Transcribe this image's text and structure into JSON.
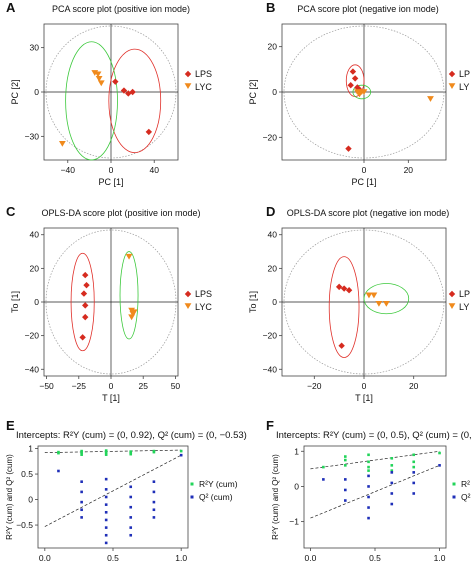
{
  "chart_data": [
    {
      "panel": "A",
      "type": "scatter",
      "title": "PCA score plot (positive ion mode)",
      "xlabel": "PC [1]",
      "ylabel": "PC [2]",
      "xlim": [
        -62,
        62
      ],
      "ylim": [
        -46,
        46
      ],
      "xticks": [
        -40,
        0,
        40
      ],
      "xticklabels": [
        "−40",
        "0",
        "40"
      ],
      "yticks": [
        -30,
        0,
        30
      ],
      "yticklabels": [
        "−30",
        "0",
        "30"
      ],
      "legend_labels": [
        "LPS",
        "LYC"
      ],
      "series": [
        {
          "name": "LPS",
          "points": [
            [
              4,
              7
            ],
            [
              12,
              1
            ],
            [
              16,
              -1
            ],
            [
              20,
              0
            ],
            [
              35,
              -27
            ]
          ]
        },
        {
          "name": "LYC",
          "points": [
            [
              -15,
              13
            ],
            [
              -12,
              12
            ],
            [
              -11,
              9
            ],
            [
              -9,
              6
            ],
            [
              -45,
              -35
            ]
          ]
        }
      ],
      "ellipses": [
        {
          "series": "LPS",
          "cx": 22,
          "cy": -6,
          "rx": 24,
          "ry": 35
        },
        {
          "series": "LYC",
          "cx": -18,
          "cy": -6,
          "rx": 24,
          "ry": 40
        }
      ]
    },
    {
      "panel": "B",
      "type": "scatter",
      "title": "PCA score plot (negative ion mode)",
      "xlabel": "PC [1]",
      "ylabel": "PC [2]",
      "xlim": [
        -37,
        37
      ],
      "ylim": [
        -30,
        30
      ],
      "xticks": [
        0,
        20
      ],
      "xticklabels": [
        "0",
        "20"
      ],
      "yticks": [
        -20,
        0,
        20
      ],
      "yticklabels": [
        "−20",
        "0",
        "20"
      ],
      "legend_labels": [
        "LP",
        "LY"
      ],
      "series": [
        {
          "name": "LPS",
          "points": [
            [
              -5,
              9
            ],
            [
              -4,
              6
            ],
            [
              -6,
              3
            ],
            [
              -3,
              2
            ],
            [
              -2,
              1
            ],
            [
              -7,
              -25
            ]
          ]
        },
        {
          "name": "LYC",
          "points": [
            [
              -3,
              0
            ],
            [
              -2,
              -1
            ],
            [
              -1,
              0
            ],
            [
              0,
              0
            ],
            [
              30,
              -3
            ]
          ]
        }
      ],
      "ellipses": [
        {
          "series": "LPS",
          "cx": -4,
          "cy": 5,
          "rx": 4,
          "ry": 7
        },
        {
          "series": "LYC",
          "cx": -1,
          "cy": 0,
          "rx": 4,
          "ry": 3
        }
      ]
    },
    {
      "panel": "C",
      "type": "scatter",
      "title": "OPLS-DA score plot (positive ion mode)",
      "xlabel": "T [1]",
      "ylabel": "To [1]",
      "xlim": [
        -52,
        52
      ],
      "ylim": [
        -44,
        44
      ],
      "xticks": [
        -50,
        -25,
        0,
        25,
        50
      ],
      "xticklabels": [
        "−50",
        "−25",
        "0",
        "25",
        "50"
      ],
      "yticks": [
        -40,
        -20,
        0,
        20,
        40
      ],
      "yticklabels": [
        "−40",
        "−20",
        "0",
        "20",
        "40"
      ],
      "legend_labels": [
        "LPS",
        "LYC"
      ],
      "series": [
        {
          "name": "LPS",
          "points": [
            [
              -20,
              16
            ],
            [
              -19,
              10
            ],
            [
              -21,
              5
            ],
            [
              -20,
              -2
            ],
            [
              -20,
              -9
            ],
            [
              -22,
              -21
            ]
          ]
        },
        {
          "name": "LYC",
          "points": [
            [
              14,
              27
            ],
            [
              16,
              -5
            ],
            [
              17,
              -7
            ],
            [
              16,
              -9
            ],
            [
              18,
              -6
            ]
          ]
        }
      ],
      "ellipses": [
        {
          "series": "LPS",
          "cx": -22,
          "cy": 0,
          "rx": 9,
          "ry": 29
        },
        {
          "series": "LYC",
          "cx": 14,
          "cy": 4,
          "rx": 7,
          "ry": 26
        }
      ]
    },
    {
      "panel": "D",
      "type": "scatter",
      "title": "OPLS-DA score plot (negative ion mode)",
      "xlabel": "T [1]",
      "ylabel": "To [1]",
      "xlim": [
        -33,
        33
      ],
      "ylim": [
        -44,
        44
      ],
      "xticks": [
        -20,
        0,
        20
      ],
      "xticklabels": [
        "−20",
        "0",
        "20"
      ],
      "yticks": [
        -40,
        -20,
        0,
        20,
        40
      ],
      "yticklabels": [
        "−40",
        "−20",
        "0",
        "20",
        "40"
      ],
      "legend_labels": [
        "LP",
        "LY"
      ],
      "series": [
        {
          "name": "LPS",
          "points": [
            [
              -10,
              9
            ],
            [
              -8,
              8
            ],
            [
              -6,
              7
            ],
            [
              -9,
              -26
            ]
          ]
        },
        {
          "name": "LYC",
          "points": [
            [
              2,
              4
            ],
            [
              4,
              4
            ],
            [
              6,
              -1
            ],
            [
              9,
              -1
            ]
          ]
        }
      ],
      "ellipses": [
        {
          "series": "LPS",
          "cx": -8,
          "cy": -3,
          "rx": 6,
          "ry": 30
        },
        {
          "series": "LYC",
          "cx": 9,
          "cy": 2,
          "rx": 9,
          "ry": 9
        }
      ]
    },
    {
      "panel": "E",
      "type": "scatter",
      "title": "Intercepts: R²Y (cum) = (0, 0.92), Q² (cum) = (0, −0.53)",
      "xlabel": "",
      "ylabel": "R²Y (cum) and Q² (cum)",
      "ylabel_visible": "R²Y (cum) and Q² (cum)",
      "xlim": [
        -0.05,
        1.05
      ],
      "ylim": [
        -0.95,
        1.05
      ],
      "xticks": [
        0,
        0.5,
        1.0
      ],
      "xticklabels": [
        "0.0",
        "0.5",
        "1.0"
      ],
      "yticks": [
        -0.5,
        0,
        0.5,
        1
      ],
      "yticklabels": [
        "−0.5",
        "0",
        "0.5",
        "1"
      ],
      "legend_labels": [
        "R²Y (cum)",
        "Q² (cum)"
      ],
      "series": [
        {
          "name": "R²Y (cum)",
          "points": [
            [
              0.1,
              0.93
            ],
            [
              0.1,
              0.91
            ],
            [
              0.27,
              0.95
            ],
            [
              0.27,
              0.92
            ],
            [
              0.27,
              0.88
            ],
            [
              0.45,
              0.96
            ],
            [
              0.45,
              0.94
            ],
            [
              0.45,
              0.91
            ],
            [
              0.45,
              0.88
            ],
            [
              0.63,
              0.94
            ],
            [
              0.63,
              0.92
            ],
            [
              0.63,
              0.89
            ],
            [
              0.8,
              0.95
            ],
            [
              0.8,
              0.93
            ],
            [
              1.0,
              0.95
            ]
          ]
        },
        {
          "name": "Q² (cum)",
          "points": [
            [
              0.1,
              0.56
            ],
            [
              0.27,
              0.35
            ],
            [
              0.27,
              0.15
            ],
            [
              0.27,
              -0.05
            ],
            [
              0.27,
              -0.2
            ],
            [
              0.27,
              -0.35
            ],
            [
              0.45,
              0.4
            ],
            [
              0.45,
              0.2
            ],
            [
              0.45,
              0.05
            ],
            [
              0.45,
              -0.1
            ],
            [
              0.45,
              -0.25
            ],
            [
              0.45,
              -0.4
            ],
            [
              0.45,
              -0.55
            ],
            [
              0.45,
              -0.7
            ],
            [
              0.45,
              -0.85
            ],
            [
              0.63,
              0.25
            ],
            [
              0.63,
              0.05
            ],
            [
              0.63,
              -0.15
            ],
            [
              0.63,
              -0.35
            ],
            [
              0.63,
              -0.55
            ],
            [
              0.63,
              -0.7
            ],
            [
              0.8,
              0.35
            ],
            [
              0.8,
              0.15
            ],
            [
              0.8,
              -0.05
            ],
            [
              0.8,
              -0.2
            ],
            [
              0.8,
              -0.35
            ],
            [
              1.0,
              0.87
            ]
          ]
        }
      ],
      "regression_lines": [
        {
          "series": "R²Y (cum)",
          "from": [
            0,
            0.92
          ],
          "to": [
            1.0,
            0.97
          ]
        },
        {
          "series": "Q² (cum)",
          "from": [
            0,
            -0.53
          ],
          "to": [
            1.0,
            0.87
          ]
        }
      ]
    },
    {
      "panel": "F",
      "type": "scatter",
      "title": "Intercepts: R²Y (cum) = (0, 0.5), Q² (cum) = (0, −0.",
      "xlabel": "",
      "ylabel": "R²Y (cum) and Q² (cum)",
      "xlim": [
        -0.05,
        1.05
      ],
      "ylim": [
        -1.75,
        1.15
      ],
      "xticks": [
        0,
        0.5,
        1.0
      ],
      "xticklabels": [
        "0.0",
        "0.5",
        "1.0"
      ],
      "yticks": [
        -1,
        0,
        1
      ],
      "yticklabels": [
        "−1",
        "0",
        "1"
      ],
      "legend_labels": [
        "R²",
        "Q²"
      ],
      "series": [
        {
          "name": "R²Y (cum)",
          "points": [
            [
              0.1,
              0.55
            ],
            [
              0.27,
              0.85
            ],
            [
              0.27,
              0.75
            ],
            [
              0.27,
              0.6
            ],
            [
              0.45,
              0.9
            ],
            [
              0.45,
              0.7
            ],
            [
              0.45,
              0.55
            ],
            [
              0.45,
              0.45
            ],
            [
              0.63,
              0.8
            ],
            [
              0.63,
              0.6
            ],
            [
              0.63,
              0.45
            ],
            [
              0.8,
              0.9
            ],
            [
              0.8,
              0.7
            ],
            [
              0.8,
              0.55
            ],
            [
              1.0,
              0.95
            ]
          ]
        },
        {
          "name": "Q² (cum)",
          "points": [
            [
              0.1,
              0.2
            ],
            [
              0.27,
              0.2
            ],
            [
              0.27,
              -0.1
            ],
            [
              0.27,
              -0.4
            ],
            [
              0.45,
              0.3
            ],
            [
              0.45,
              0.0
            ],
            [
              0.45,
              -0.3
            ],
            [
              0.45,
              -0.6
            ],
            [
              0.45,
              -0.9
            ],
            [
              0.63,
              0.4
            ],
            [
              0.63,
              0.1
            ],
            [
              0.63,
              -0.2
            ],
            [
              0.63,
              -0.5
            ],
            [
              0.8,
              0.4
            ],
            [
              0.8,
              0.1
            ],
            [
              0.8,
              -0.2
            ],
            [
              1.0,
              0.6
            ]
          ]
        }
      ],
      "regression_lines": [
        {
          "series": "R²Y (cum)",
          "from": [
            0,
            0.5
          ],
          "to": [
            1.0,
            1.0
          ]
        },
        {
          "series": "Q² (cum)",
          "from": [
            0,
            -0.9
          ],
          "to": [
            1.0,
            0.6
          ]
        }
      ]
    }
  ],
  "colors": {
    "lps": "#d62b1f",
    "lyc": "#f08a1c",
    "lps_ellipse": "#e0302a",
    "lyc_ellipse": "#3cc93c",
    "r2y": "#22d45a",
    "q2": "#1f2fb8",
    "circle": "#999999"
  }
}
